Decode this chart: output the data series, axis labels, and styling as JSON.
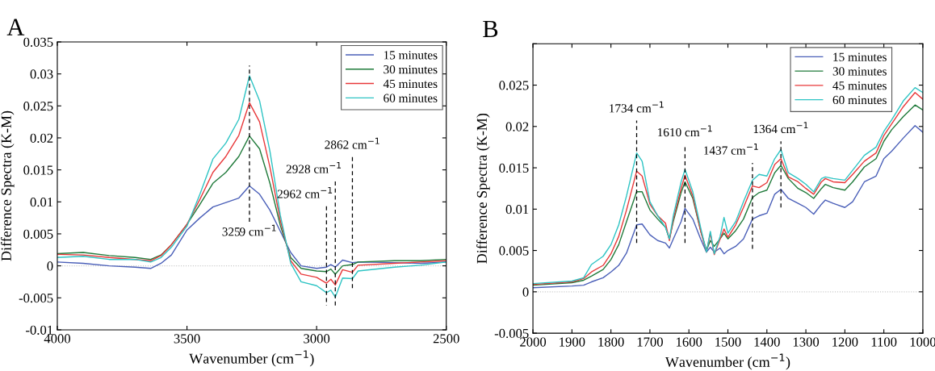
{
  "chart_data": [
    {
      "type": "line",
      "title": "A",
      "xlabel": "Wavenumber (cm$^{−1}$)",
      "ylabel": "Difference Spectra (K-M)",
      "x": [
        4000,
        3900,
        3800,
        3700,
        3640,
        3600,
        3560,
        3500,
        3450,
        3400,
        3350,
        3300,
        3259,
        3220,
        3180,
        3140,
        3100,
        3060,
        3000,
        2962,
        2945,
        2928,
        2900,
        2862,
        2840,
        2700,
        2600,
        2500
      ],
      "series": [
        {
          "name": "15 minutes",
          "color": "#4a5fb8",
          "values": [
            0.0006,
            0.0004,
            0,
            -0.0002,
            -0.0004,
            0.0004,
            0.0017,
            0.0056,
            0.0075,
            0.0092,
            0.0099,
            0.0106,
            0.0125,
            0.0112,
            0.0087,
            0.0054,
            0.0021,
            0,
            -0.0004,
            -0.0002,
            0.0002,
            -0.0002,
            0.0009,
            0.0005,
            0.0006,
            0.0005,
            0.0004,
            0.0006
          ]
        },
        {
          "name": "30 minutes",
          "color": "#1f7a3a",
          "values": [
            0.0019,
            0.0021,
            0.0016,
            0.0013,
            0.001,
            0.0017,
            0.0033,
            0.0065,
            0.0096,
            0.0129,
            0.0146,
            0.0171,
            0.0203,
            0.0183,
            0.0129,
            0.0063,
            0.0013,
            -0.0004,
            -0.0008,
            -0.0009,
            -0.0005,
            -0.0013,
            0,
            0.0002,
            0.0006,
            0.0008,
            0.0008,
            0.001
          ]
        },
        {
          "name": "45 minutes",
          "color": "#e8383a",
          "values": [
            0.0018,
            0.0017,
            0.0013,
            0.001,
            0.0008,
            0.0016,
            0.0033,
            0.0065,
            0.0104,
            0.0146,
            0.0171,
            0.0204,
            0.0255,
            0.0225,
            0.0154,
            0.0071,
            0.0008,
            -0.0013,
            -0.0018,
            -0.0027,
            -0.0021,
            -0.003,
            -0.0006,
            -0.001,
            0.0001,
            0.0004,
            0.0006,
            0.0008
          ]
        },
        {
          "name": "60 minutes",
          "color": "#2ec4c4",
          "values": [
            0.0013,
            0.0015,
            0.001,
            0.001,
            0.0006,
            0.0013,
            0.0029,
            0.0062,
            0.0112,
            0.0167,
            0.0192,
            0.0229,
            0.0297,
            0.0258,
            0.0179,
            0.0079,
            0.0004,
            -0.0025,
            -0.0031,
            -0.0042,
            -0.0038,
            -0.0049,
            -0.0019,
            -0.002,
            -0.0008,
            -0.0002,
            0.0001,
            0.0006
          ]
        },
        {
          "type": "line",
          "line_style": "dashed",
          "color": "#000000",
          "x": [
            3259,
            3259
          ],
          "values": [
            0.0069,
            0.0313
          ]
        },
        {
          "type": "line",
          "line_style": "dashed",
          "color": "#000000",
          "x": [
            2962,
            2962
          ],
          "values": [
            0.0093,
            -0.0062
          ]
        },
        {
          "type": "line",
          "line_style": "dashed",
          "color": "#000000",
          "x": [
            2928,
            2928
          ],
          "values": [
            0.0132,
            -0.0065
          ]
        },
        {
          "type": "line",
          "line_style": "dashed",
          "color": "#000000",
          "x": [
            2862,
            2862
          ],
          "values": [
            0.017,
            -0.0035
          ]
        }
      ],
      "annotations": [
        {
          "text": "3259 cm$^{−1}$",
          "x": 3259,
          "y": 0.0069
        },
        {
          "text": "2962 cm$^{−1}$",
          "x": 2962,
          "y": 0.0093
        },
        {
          "text": "2928 cm$^{−1}$",
          "x": 2928,
          "y": 0.0132
        },
        {
          "text": "2862 cm$^{−1}$",
          "x": 2862,
          "y": 0.017
        }
      ],
      "ref_lines": [
        {
          "axis": "y",
          "value": 0,
          "color": "#c8c8c8",
          "line_style": "dotted"
        }
      ],
      "xlim": [
        4000,
        2500
      ],
      "xticks": [
        4000,
        3500,
        3000,
        2500
      ],
      "ylim": [
        -0.01,
        0.035
      ],
      "yticks": [
        -0.01,
        -0.005,
        0,
        0.005,
        0.01,
        0.015,
        0.02,
        0.025,
        0.03,
        0.035
      ],
      "legend": "top right",
      "grid": false
    },
    {
      "type": "line",
      "title": "B",
      "xlabel": "Wavenumber (cm$^{−1}$)",
      "ylabel": "Difference Spectra (K-M)",
      "x": [
        2000,
        1900,
        1870,
        1850,
        1820,
        1800,
        1780,
        1760,
        1734,
        1720,
        1700,
        1680,
        1660,
        1650,
        1640,
        1620,
        1610,
        1590,
        1570,
        1555,
        1545,
        1535,
        1520,
        1510,
        1500,
        1480,
        1460,
        1437,
        1420,
        1400,
        1380,
        1364,
        1345,
        1320,
        1300,
        1280,
        1260,
        1250,
        1230,
        1200,
        1180,
        1150,
        1120,
        1100,
        1080,
        1050,
        1020,
        1000
      ],
      "series": [
        {
          "name": "15 minutes",
          "color": "#4a5fb8",
          "values": [
            0.0005,
            0.0007,
            0.0008,
            0.0012,
            0.0017,
            0.0024,
            0.0032,
            0.0047,
            0.0081,
            0.0082,
            0.0069,
            0.0062,
            0.0059,
            0.0053,
            0.0064,
            0.0085,
            0.0101,
            0.0088,
            0.0064,
            0.0048,
            0.0054,
            0.0048,
            0.0053,
            0.0046,
            0.005,
            0.0055,
            0.0064,
            0.0088,
            0.0092,
            0.0095,
            0.0118,
            0.0124,
            0.0113,
            0.0107,
            0.0102,
            0.0094,
            0.0106,
            0.0111,
            0.0107,
            0.0102,
            0.0109,
            0.0133,
            0.014,
            0.0161,
            0.017,
            0.0186,
            0.0201,
            0.0193
          ]
        },
        {
          "name": "30 minutes",
          "color": "#1f7a3a",
          "values": [
            0.0008,
            0.0011,
            0.0014,
            0.0019,
            0.0027,
            0.0039,
            0.0057,
            0.0085,
            0.0121,
            0.0121,
            0.0099,
            0.0088,
            0.0078,
            0.0064,
            0.0085,
            0.012,
            0.0133,
            0.0113,
            0.0074,
            0.005,
            0.0062,
            0.0055,
            0.0064,
            0.0071,
            0.0064,
            0.0074,
            0.0088,
            0.0114,
            0.012,
            0.0123,
            0.0144,
            0.0153,
            0.0137,
            0.0125,
            0.012,
            0.0113,
            0.0125,
            0.013,
            0.0126,
            0.0123,
            0.0133,
            0.0151,
            0.0161,
            0.0182,
            0.0196,
            0.0212,
            0.0226,
            0.022
          ]
        },
        {
          "name": "45 minutes",
          "color": "#e8383a",
          "values": [
            0.0009,
            0.0012,
            0.0016,
            0.0024,
            0.0032,
            0.0046,
            0.0067,
            0.0099,
            0.0146,
            0.014,
            0.0106,
            0.0092,
            0.0083,
            0.0062,
            0.0088,
            0.0125,
            0.0141,
            0.0116,
            0.0074,
            0.0048,
            0.0071,
            0.0045,
            0.0064,
            0.0076,
            0.0066,
            0.0081,
            0.0102,
            0.0128,
            0.0126,
            0.0132,
            0.0154,
            0.0161,
            0.0139,
            0.0133,
            0.0125,
            0.0118,
            0.0133,
            0.0137,
            0.0133,
            0.0132,
            0.0142,
            0.0158,
            0.0168,
            0.0189,
            0.0203,
            0.0224,
            0.0241,
            0.0233
          ]
        },
        {
          "name": "60 minutes",
          "color": "#2ec4c4",
          "values": [
            0.001,
            0.0013,
            0.0017,
            0.0033,
            0.0043,
            0.0057,
            0.0081,
            0.0116,
            0.0168,
            0.0158,
            0.0109,
            0.0092,
            0.0078,
            0.0064,
            0.0092,
            0.0133,
            0.0148,
            0.0121,
            0.0078,
            0.0048,
            0.0073,
            0.0046,
            0.0067,
            0.009,
            0.0071,
            0.0085,
            0.0109,
            0.0135,
            0.0142,
            0.014,
            0.0161,
            0.0172,
            0.0144,
            0.0137,
            0.013,
            0.0121,
            0.0137,
            0.0139,
            0.0137,
            0.0135,
            0.0147,
            0.0165,
            0.0175,
            0.0194,
            0.0208,
            0.0231,
            0.0247,
            0.0241
          ]
        },
        {
          "type": "line",
          "line_style": "dashed",
          "color": "#000000",
          "x": [
            1734,
            1734
          ],
          "values": [
            0.0059,
            0.0207
          ]
        },
        {
          "type": "line",
          "line_style": "dashed",
          "color": "#000000",
          "x": [
            1610,
            1610
          ],
          "values": [
            0.0059,
            0.0178
          ]
        },
        {
          "type": "line",
          "line_style": "dashed",
          "color": "#000000",
          "x": [
            1437,
            1437
          ],
          "values": [
            0.0052,
            0.0156
          ]
        },
        {
          "type": "line",
          "line_style": "dashed",
          "color": "#000000",
          "x": [
            1364,
            1364
          ],
          "values": [
            0.0102,
            0.0182
          ]
        }
      ],
      "annotations": [
        {
          "text": "1734 cm$^{−1}$",
          "x": 1734,
          "y": 0.0207
        },
        {
          "text": "1610 cm$^{−1}$",
          "x": 1610,
          "y": 0.0178
        },
        {
          "text": "1437 cm$^{−1}$",
          "x": 1437,
          "y": 0.0156
        },
        {
          "text": "1364 cm$^{−1}$",
          "x": 1364,
          "y": 0.0182
        }
      ],
      "ref_lines": [
        {
          "axis": "y",
          "value": 0,
          "color": "#c8c8c8",
          "line_style": "dotted"
        }
      ],
      "xlim": [
        2000,
        1000
      ],
      "xticks": [
        2000,
        1900,
        1800,
        1700,
        1600,
        1500,
        1400,
        1300,
        1200,
        1100,
        1000
      ],
      "ylim": [
        -0.005,
        0.03
      ],
      "yticks": [
        -0.005,
        0,
        0.005,
        0.01,
        0.015,
        0.02,
        0.025,
        {
          "value": 0.03,
          "label": null
        }
      ],
      "legend": "top right",
      "grid": false
    }
  ]
}
